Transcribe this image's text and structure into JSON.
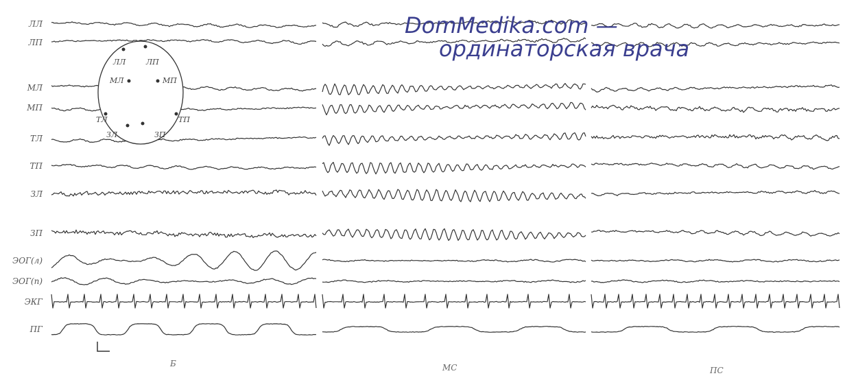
{
  "channels": [
    "ЛЛ",
    "ЛП",
    "МЛ",
    "МП",
    "ТЛ",
    "ТП",
    "ЗЛ",
    "ЗП",
    "ЭОГ(л)",
    "ЭОГ(п)",
    "ЭКГ",
    "ПГ"
  ],
  "head_labels": [
    "ЛЛ",
    "ЛП",
    "МЛ",
    "МП",
    "ТЛ",
    "ТП",
    "ЗЛ",
    "ЗП"
  ],
  "watermark": {
    "line1": "DomMedika.com —",
    "line2": "ординаторская врача"
  },
  "panels": [
    "Б",
    "МС",
    "ПС"
  ]
}
